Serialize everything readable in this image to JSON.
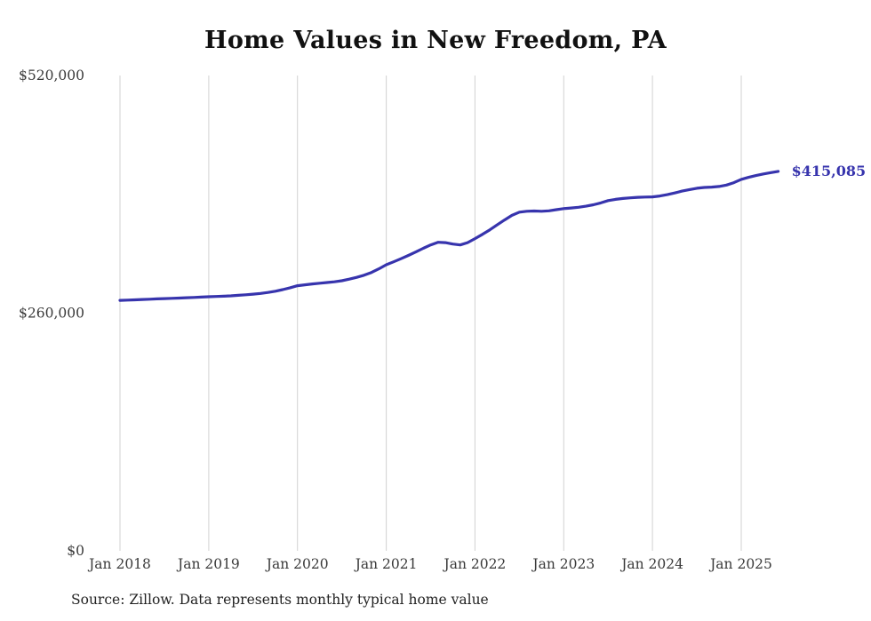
{
  "page": {
    "title": "Home Values in New Freedom, PA",
    "source_note": "Source: Zillow. Data represents monthly typical home value"
  },
  "chart_data": {
    "type": "line",
    "title": "Home Values in New Freedom, PA",
    "series_name": "Monthly typical home value",
    "end_label": "$415,085",
    "end_value": 415085,
    "ylim": [
      0,
      520000
    ],
    "grid": "vertical-only",
    "legend": "none",
    "y_ticks": [
      {
        "value": 0,
        "label": "$0"
      },
      {
        "value": 260000,
        "label": "$260,000"
      },
      {
        "value": 520000,
        "label": "$520,000"
      }
    ],
    "x_ticks": [
      {
        "index": 0,
        "label": "Jan 2018"
      },
      {
        "index": 12,
        "label": "Jan 2019"
      },
      {
        "index": 24,
        "label": "Jan 2020"
      },
      {
        "index": 36,
        "label": "Jan 2021"
      },
      {
        "index": 48,
        "label": "Jan 2022"
      },
      {
        "index": 60,
        "label": "Jan 2023"
      },
      {
        "index": 72,
        "label": "Jan 2024"
      },
      {
        "index": 84,
        "label": "Jan 2025"
      }
    ],
    "x": [
      "2018-01",
      "2018-02",
      "2018-03",
      "2018-04",
      "2018-05",
      "2018-06",
      "2018-07",
      "2018-08",
      "2018-09",
      "2018-10",
      "2018-11",
      "2018-12",
      "2019-01",
      "2019-02",
      "2019-03",
      "2019-04",
      "2019-05",
      "2019-06",
      "2019-07",
      "2019-08",
      "2019-09",
      "2019-10",
      "2019-11",
      "2019-12",
      "2020-01",
      "2020-02",
      "2020-03",
      "2020-04",
      "2020-05",
      "2020-06",
      "2020-07",
      "2020-08",
      "2020-09",
      "2020-10",
      "2020-11",
      "2020-12",
      "2021-01",
      "2021-02",
      "2021-03",
      "2021-04",
      "2021-05",
      "2021-06",
      "2021-07",
      "2021-08",
      "2021-09",
      "2021-10",
      "2021-11",
      "2021-12",
      "2022-01",
      "2022-02",
      "2022-03",
      "2022-04",
      "2022-05",
      "2022-06",
      "2022-07",
      "2022-08",
      "2022-09",
      "2022-10",
      "2022-11",
      "2022-12",
      "2023-01",
      "2023-02",
      "2023-03",
      "2023-04",
      "2023-05",
      "2023-06",
      "2023-07",
      "2023-08",
      "2023-09",
      "2023-10",
      "2023-11",
      "2023-12",
      "2024-01",
      "2024-02",
      "2024-03",
      "2024-04",
      "2024-05",
      "2024-06",
      "2024-07",
      "2024-08",
      "2024-09",
      "2024-10",
      "2024-11",
      "2024-12",
      "2025-01",
      "2025-02",
      "2025-03",
      "2025-04",
      "2025-05",
      "2025-06"
    ],
    "values": [
      274000,
      274300,
      274600,
      275000,
      275300,
      275600,
      275900,
      276200,
      276500,
      276900,
      277200,
      277600,
      278000,
      278300,
      278600,
      279000,
      279500,
      280100,
      280800,
      281600,
      282600,
      284000,
      285800,
      287800,
      290000,
      291000,
      292000,
      292800,
      293500,
      294300,
      295500,
      297200,
      299200,
      301500,
      304500,
      308500,
      313000,
      316200,
      319600,
      323200,
      327000,
      331000,
      334600,
      337600,
      337200,
      335600,
      334600,
      337200,
      341500,
      346200,
      351200,
      356600,
      362000,
      367000,
      370500,
      371500,
      371800,
      371500,
      372000,
      373200,
      374400,
      375100,
      375900,
      377000,
      378600,
      380600,
      383100,
      384500,
      385500,
      386200,
      386700,
      387000,
      387200,
      388200,
      389700,
      391500,
      393500,
      395200,
      396700,
      397500,
      397900,
      398600,
      400200,
      402800,
      406400,
      408600,
      410600,
      412300,
      413800,
      415085
    ],
    "colors": {
      "line": "#3734ad",
      "end_label": "#3734ad",
      "grid": "#d2d2d2",
      "tick_text": "#3a3a3a",
      "title_text": "#111111"
    }
  }
}
